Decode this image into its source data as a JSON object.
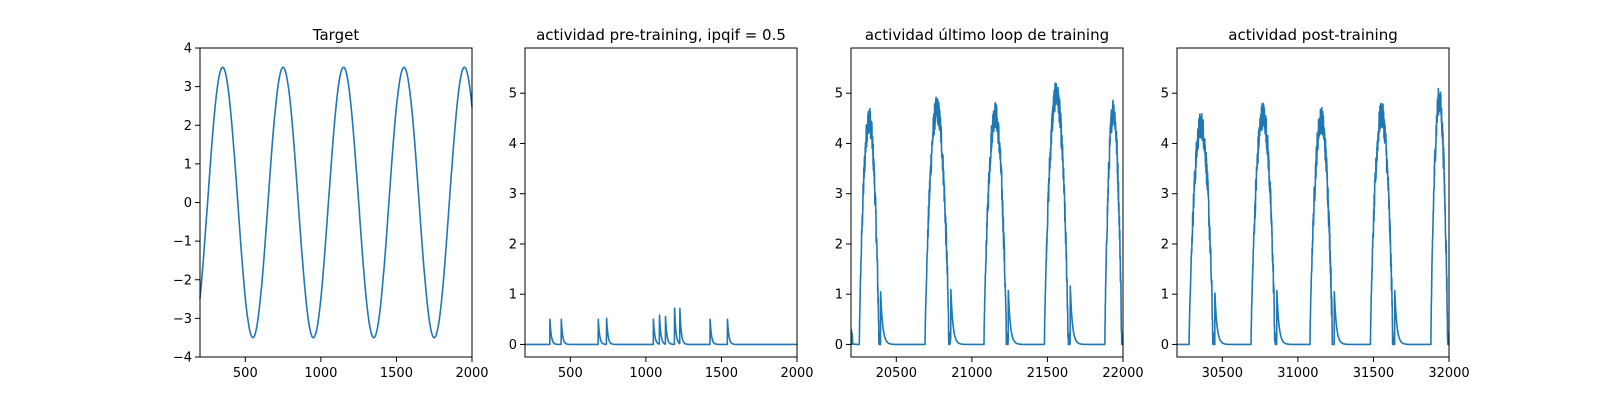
{
  "chart_data": [
    {
      "type": "line",
      "title": "Target",
      "xlim": [
        200,
        2000
      ],
      "ylim": [
        -4,
        4
      ],
      "xticks": [
        500,
        1000,
        1500,
        2000
      ],
      "yticks": [
        -4,
        -3,
        -2,
        -1,
        0,
        1,
        2,
        3,
        4
      ],
      "series": [
        {
          "kind": "sine",
          "amplitude": 3.5,
          "period": 400,
          "peak_x": [
            350,
            750,
            1150,
            1550,
            1950
          ],
          "trough_x": [
            550,
            950,
            1350,
            1750
          ]
        }
      ]
    },
    {
      "type": "line",
      "title": "actividad pre-training, ipqif = 0.5",
      "xlim": [
        200,
        2000
      ],
      "ylim": [
        -0.25,
        5.9
      ],
      "xticks": [
        500,
        1000,
        1500,
        2000
      ],
      "yticks": [
        0,
        1,
        2,
        3,
        4,
        5
      ],
      "series": [
        {
          "kind": "spikes",
          "baseline": 0,
          "spikes": [
            {
              "x": 365,
              "height": 0.5
            },
            {
              "x": 440,
              "height": 0.5
            },
            {
              "x": 685,
              "height": 0.5
            },
            {
              "x": 740,
              "height": 0.52
            },
            {
              "x": 1050,
              "height": 0.5
            },
            {
              "x": 1090,
              "height": 0.58
            },
            {
              "x": 1130,
              "height": 0.55
            },
            {
              "x": 1190,
              "height": 0.72
            },
            {
              "x": 1225,
              "height": 0.7
            },
            {
              "x": 1425,
              "height": 0.5
            },
            {
              "x": 1540,
              "height": 0.5
            }
          ]
        }
      ]
    },
    {
      "type": "line",
      "title": "actividad último loop de training",
      "xlim": [
        20200,
        22000
      ],
      "ylim": [
        -0.25,
        5.9
      ],
      "xticks": [
        20500,
        21000,
        21500,
        22000
      ],
      "yticks": [
        0,
        1,
        2,
        3,
        4,
        5
      ],
      "series": [
        {
          "kind": "bursts",
          "baseline": 0,
          "bursts": [
            {
              "start": 20200,
              "end": 20210,
              "peak": 0.05
            },
            {
              "start": 20255,
              "end": 20395,
              "peak": 4.5
            },
            {
              "start": 20690,
              "end": 20860,
              "peak": 4.7
            },
            {
              "start": 21080,
              "end": 21240,
              "peak": 4.6
            },
            {
              "start": 21480,
              "end": 21650,
              "peak": 5.0
            },
            {
              "start": 21880,
              "end": 22000,
              "peak": 4.7
            }
          ],
          "max": 5.6
        }
      ]
    },
    {
      "type": "line",
      "title": "actividad post-training",
      "xlim": [
        30200,
        32000
      ],
      "ylim": [
        -0.25,
        5.9
      ],
      "xticks": [
        30500,
        31000,
        31500,
        32000
      ],
      "yticks": [
        0,
        1,
        2,
        3,
        4,
        5
      ],
      "series": [
        {
          "kind": "bursts",
          "baseline": 0,
          "bursts": [
            {
              "start": 30280,
              "end": 30450,
              "peak": 4.4
            },
            {
              "start": 30690,
              "end": 30860,
              "peak": 4.6
            },
            {
              "start": 31080,
              "end": 31240,
              "peak": 4.5
            },
            {
              "start": 31480,
              "end": 31640,
              "peak": 4.6
            },
            {
              "start": 31880,
              "end": 32000,
              "peak": 4.9
            }
          ],
          "max": 5.25
        }
      ]
    }
  ]
}
